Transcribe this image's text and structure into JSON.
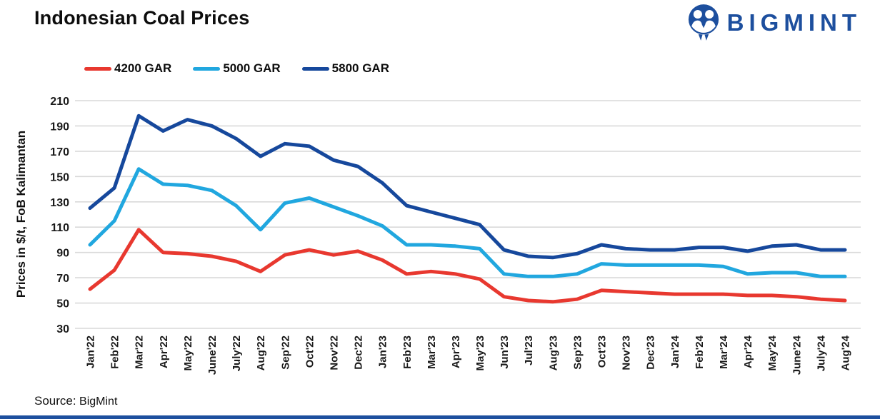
{
  "header": {
    "title": "Indonesian Coal Prices",
    "logo_text": "BIGMINT"
  },
  "source": {
    "label": "Source:",
    "value": "BigMint"
  },
  "colors": {
    "brand_navy": "#1d4f9e",
    "gridline": "#d9d9d9",
    "axis_text": "#1a1a1a",
    "series_4200": "#e8382f",
    "series_5000": "#21a7df",
    "series_5800": "#16489c"
  },
  "chart_data": {
    "type": "line",
    "title": "Indonesian Coal Prices",
    "xlabel": "",
    "ylabel": "Prices in $/t, FoB Kalimantan",
    "ylim": [
      30,
      210
    ],
    "yticks": [
      30,
      50,
      70,
      90,
      110,
      130,
      150,
      170,
      190,
      210
    ],
    "grid": true,
    "legend_position": "top-left",
    "categories": [
      "Jan'22",
      "Feb'22",
      "Mar'22",
      "Apr'22",
      "May'22",
      "June'22",
      "July'22",
      "Aug'22",
      "Sep'22",
      "Oct'22",
      "Nov'22",
      "Dec'22",
      "Jan'23",
      "Feb'23",
      "Mar'23",
      "Apr'23",
      "May'23",
      "Jun'23",
      "Jul'23",
      "Aug'23",
      "Sep'23",
      "Oct'23",
      "Nov'23",
      "Dec'23",
      "Jan'24",
      "Feb'24",
      "Mar'24",
      "Apr'24",
      "May'24",
      "June'24",
      "July'24",
      "Aug'24"
    ],
    "series": [
      {
        "name": "4200 GAR",
        "color": "#e8382f",
        "values": [
          61,
          76,
          108,
          90,
          89,
          87,
          83,
          75,
          88,
          92,
          88,
          91,
          84,
          73,
          75,
          73,
          69,
          55,
          52,
          51,
          53,
          60,
          59,
          58,
          57,
          57,
          57,
          56,
          56,
          55,
          53,
          52
        ]
      },
      {
        "name": "5000 GAR",
        "color": "#21a7df",
        "values": [
          96,
          115,
          156,
          144,
          143,
          139,
          127,
          108,
          129,
          133,
          126,
          119,
          111,
          96,
          96,
          95,
          93,
          73,
          71,
          71,
          73,
          81,
          80,
          80,
          80,
          80,
          79,
          73,
          74,
          74,
          71,
          71
        ]
      },
      {
        "name": "5800 GAR",
        "color": "#16489c",
        "values": [
          125,
          141,
          198,
          186,
          195,
          190,
          180,
          166,
          176,
          174,
          163,
          158,
          145,
          127,
          122,
          117,
          112,
          92,
          87,
          86,
          89,
          96,
          93,
          92,
          92,
          94,
          94,
          91,
          95,
          96,
          92,
          92
        ]
      }
    ]
  }
}
